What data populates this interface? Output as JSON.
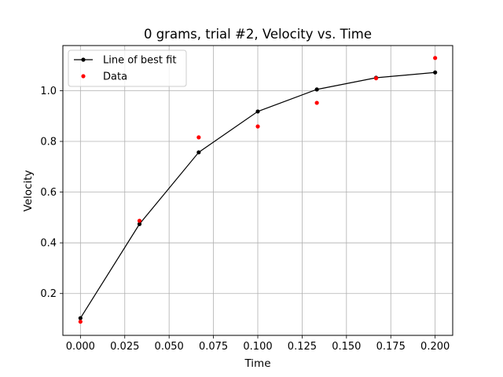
{
  "chart_data": {
    "type": "line",
    "title": "0 grams, trial #2, Velocity vs. Time",
    "xlabel": "Time",
    "ylabel": "Velocity",
    "xlim": [
      -0.0099,
      0.2099
    ],
    "ylim": [
      0.035,
      1.178
    ],
    "grid": true,
    "legend_position": "top-left",
    "x_ticks": [
      0.0,
      0.025,
      0.05,
      0.075,
      0.1,
      0.125,
      0.15,
      0.175,
      0.2
    ],
    "x_tick_labels": [
      "0.000",
      "0.025",
      "0.050",
      "0.075",
      "0.100",
      "0.125",
      "0.150",
      "0.175",
      "0.200"
    ],
    "y_ticks": [
      0.2,
      0.4,
      0.6,
      0.8,
      1.0
    ],
    "y_tick_labels": [
      "0.2",
      "0.4",
      "0.6",
      "0.8",
      "1.0"
    ],
    "series": [
      {
        "name": "Line of best fit",
        "style": "line-with-markers",
        "color": "#000000",
        "x": [
          0.0,
          0.0333,
          0.0667,
          0.1,
          0.1333,
          0.1667,
          0.2
        ],
        "y": [
          0.103,
          0.474,
          0.757,
          0.918,
          1.005,
          1.051,
          1.072
        ]
      },
      {
        "name": "Data",
        "style": "markers",
        "color": "#ff0000",
        "x": [
          0.0,
          0.0333,
          0.0667,
          0.1,
          0.1333,
          0.1667,
          0.2
        ],
        "y": [
          0.089,
          0.487,
          0.816,
          0.859,
          0.952,
          1.049,
          1.129
        ]
      }
    ]
  }
}
